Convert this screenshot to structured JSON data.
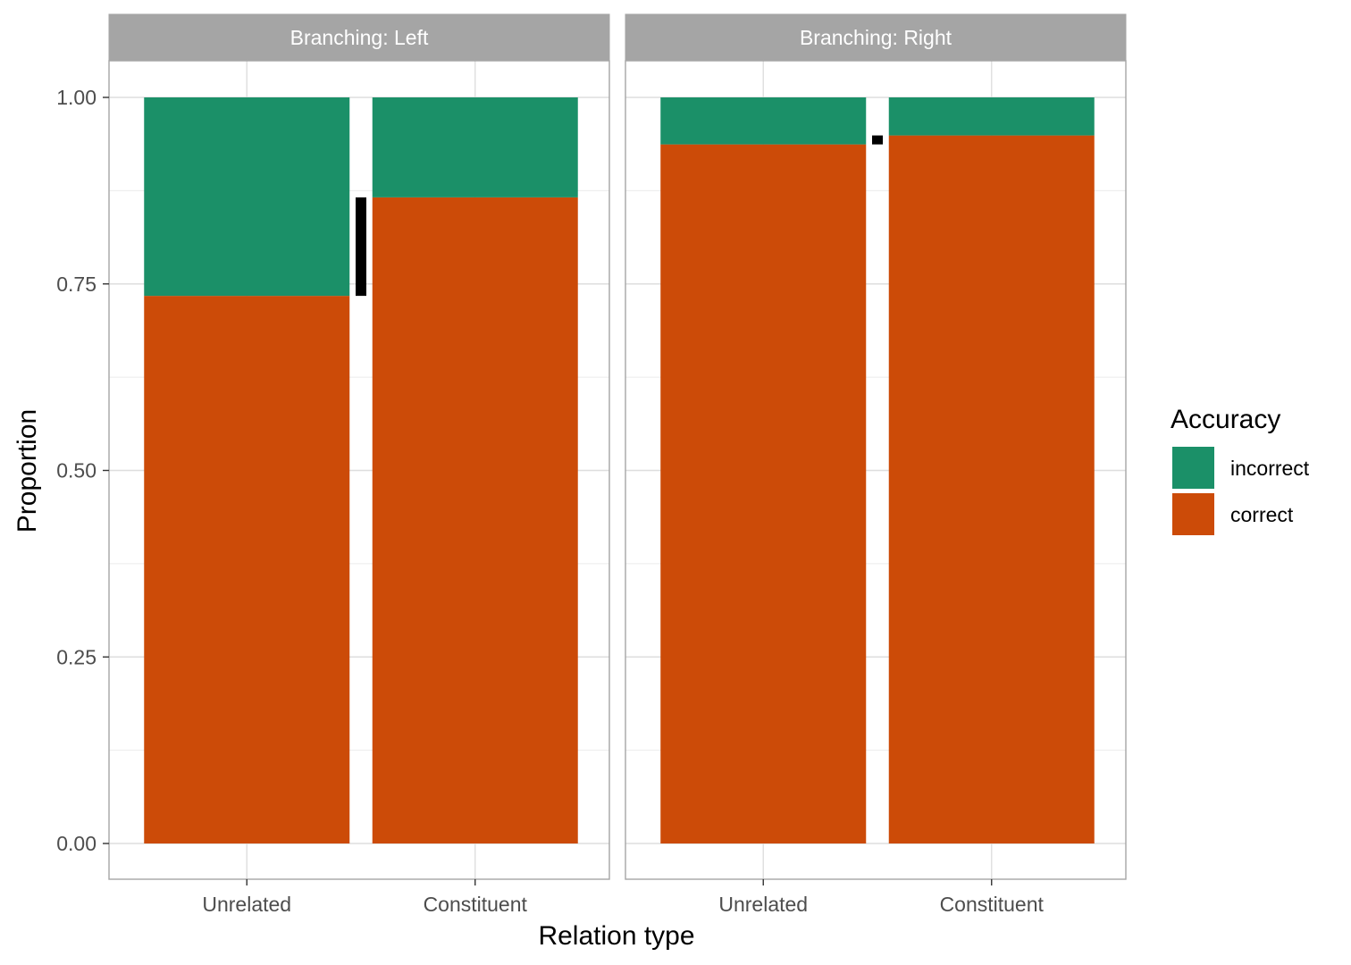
{
  "chart_data": {
    "type": "bar",
    "stacked": true,
    "xlabel": "Relation type",
    "ylabel": "Proportion",
    "ylim": [
      0,
      1
    ],
    "y_ticks": [
      "0.00",
      "0.25",
      "0.50",
      "0.75",
      "1.00"
    ],
    "categories": [
      "Unrelated",
      "Constituent"
    ],
    "legend": {
      "title": "Accuracy",
      "placement": "right",
      "items": [
        {
          "name": "incorrect",
          "color": "#1b9068"
        },
        {
          "name": "correct",
          "color": "#cc4b08"
        }
      ]
    },
    "grid": true,
    "facets": [
      {
        "label": "Branching: Left",
        "series": [
          {
            "name": "correct",
            "values": [
              0.734,
              0.866
            ]
          },
          {
            "name": "incorrect",
            "values": [
              0.266,
              0.134
            ]
          }
        ],
        "difference_bar": {
          "from": 0.734,
          "to": 0.866
        }
      },
      {
        "label": "Branching: Right",
        "series": [
          {
            "name": "correct",
            "values": [
              0.937,
              0.949
            ]
          },
          {
            "name": "incorrect",
            "values": [
              0.063,
              0.051
            ]
          }
        ],
        "difference_bar": {
          "from": 0.937,
          "to": 0.949
        }
      }
    ]
  }
}
